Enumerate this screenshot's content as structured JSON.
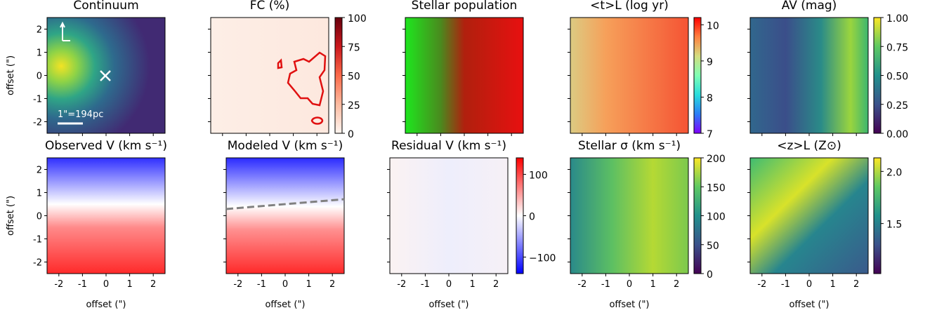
{
  "chart_data": [
    {
      "type": "image",
      "title": "Continuum",
      "ylabel": "offset (\")",
      "xlim": [
        -2.5,
        2.5
      ],
      "ylim": [
        -2.5,
        2.5
      ],
      "xticks": [
        -2,
        -1,
        0,
        1,
        2
      ],
      "yticks": [
        -2,
        -1,
        0,
        1,
        2
      ],
      "annotations": [
        "1\"=194pc"
      ]
    },
    {
      "type": "image",
      "title": "FC (%)",
      "xlim": [
        -2.5,
        2.5
      ],
      "ylim": [
        -2.5,
        2.5
      ],
      "xticks": [
        -2,
        -1,
        0,
        1,
        2
      ],
      "yticks": [
        -2,
        -1,
        0,
        1,
        2
      ],
      "cmap": "Reds",
      "clim": [
        0,
        100
      ],
      "cticks": [
        0,
        25,
        50,
        75,
        100
      ]
    },
    {
      "type": "image",
      "title": "Stellar population",
      "xlim": [
        -2.5,
        2.5
      ],
      "ylim": [
        -2.5,
        2.5
      ],
      "xticks": [
        -2,
        -1,
        0,
        1,
        2
      ],
      "yticks": [
        -2,
        -1,
        0,
        1,
        2
      ]
    },
    {
      "type": "image",
      "title": "<t>L (log yr)",
      "xlim": [
        -2.5,
        2.5
      ],
      "ylim": [
        -2.5,
        2.5
      ],
      "xticks": [
        -2,
        -1,
        0,
        1,
        2
      ],
      "yticks": [
        -2,
        -1,
        0,
        1,
        2
      ],
      "cmap": "rainbow",
      "clim": [
        7,
        10.2
      ],
      "cticks": [
        7,
        8,
        9,
        10
      ]
    },
    {
      "type": "image",
      "title": "AV (mag)",
      "xlim": [
        -2.5,
        2.5
      ],
      "ylim": [
        -2.5,
        2.5
      ],
      "xticks": [
        -2,
        -1,
        0,
        1,
        2
      ],
      "yticks": [
        -2,
        -1,
        0,
        1,
        2
      ],
      "cmap": "viridis",
      "clim": [
        0,
        1
      ],
      "cticks": [
        {
          "value": 0,
          "label": "0.00"
        },
        {
          "value": 0.25,
          "label": "0.25"
        },
        {
          "value": 0.5,
          "label": "0.50"
        },
        {
          "value": 0.75,
          "label": "0.75"
        },
        {
          "value": 1,
          "label": "1.00"
        }
      ]
    },
    {
      "type": "image",
      "title": "Observed V (km s⁻¹)",
      "xlabel": "offset (\")",
      "ylabel": "offset (\")",
      "xlim": [
        -2.5,
        2.5
      ],
      "ylim": [
        -2.5,
        2.5
      ],
      "xticks": [
        -2,
        -1,
        0,
        1,
        2
      ],
      "yticks": [
        -2,
        -1,
        0,
        1,
        2
      ]
    },
    {
      "type": "image",
      "title": "Modeled V (km s⁻¹)",
      "xlabel": "offset (\")",
      "xlim": [
        -2.5,
        2.5
      ],
      "ylim": [
        -2.5,
        2.5
      ],
      "xticks": [
        -2,
        -1,
        0,
        1,
        2
      ],
      "yticks": [
        -2,
        -1,
        0,
        1,
        2
      ]
    },
    {
      "type": "image",
      "title": "Residual V (km s⁻¹)",
      "xlabel": "offset (\")",
      "xlim": [
        -2.5,
        2.5
      ],
      "ylim": [
        -2.5,
        2.5
      ],
      "xticks": [
        -2,
        -1,
        0,
        1,
        2
      ],
      "yticks": [
        -2,
        -1,
        0,
        1,
        2
      ],
      "cmap": "bwr",
      "clim": [
        -140,
        140
      ],
      "cticks": [
        {
          "value": -100,
          "label": "−100"
        },
        0,
        100
      ]
    },
    {
      "type": "image",
      "title": "Stellar σ (km s⁻¹)",
      "xlabel": "offset (\")",
      "xlim": [
        -2.5,
        2.5
      ],
      "ylim": [
        -2.5,
        2.5
      ],
      "xticks": [
        -2,
        -1,
        0,
        1,
        2
      ],
      "yticks": [
        -2,
        -1,
        0,
        1,
        2
      ],
      "cmap": "viridis",
      "clim": [
        0,
        200
      ],
      "cticks": [
        0,
        50,
        100,
        150,
        200
      ]
    },
    {
      "type": "image",
      "title": "<z>L (Z⊙)",
      "xlabel": "offset (\")",
      "xlim": [
        -2.5,
        2.5
      ],
      "ylim": [
        -2.5,
        2.5
      ],
      "xticks": [
        -2,
        -1,
        0,
        1,
        2
      ],
      "yticks": [
        -2,
        -1,
        0,
        1,
        2
      ],
      "cmap": "viridis",
      "clim": [
        1.02,
        2.13
      ],
      "cticks": [
        1.5,
        {
          "value": 2.0,
          "label": "2.0"
        }
      ]
    }
  ]
}
